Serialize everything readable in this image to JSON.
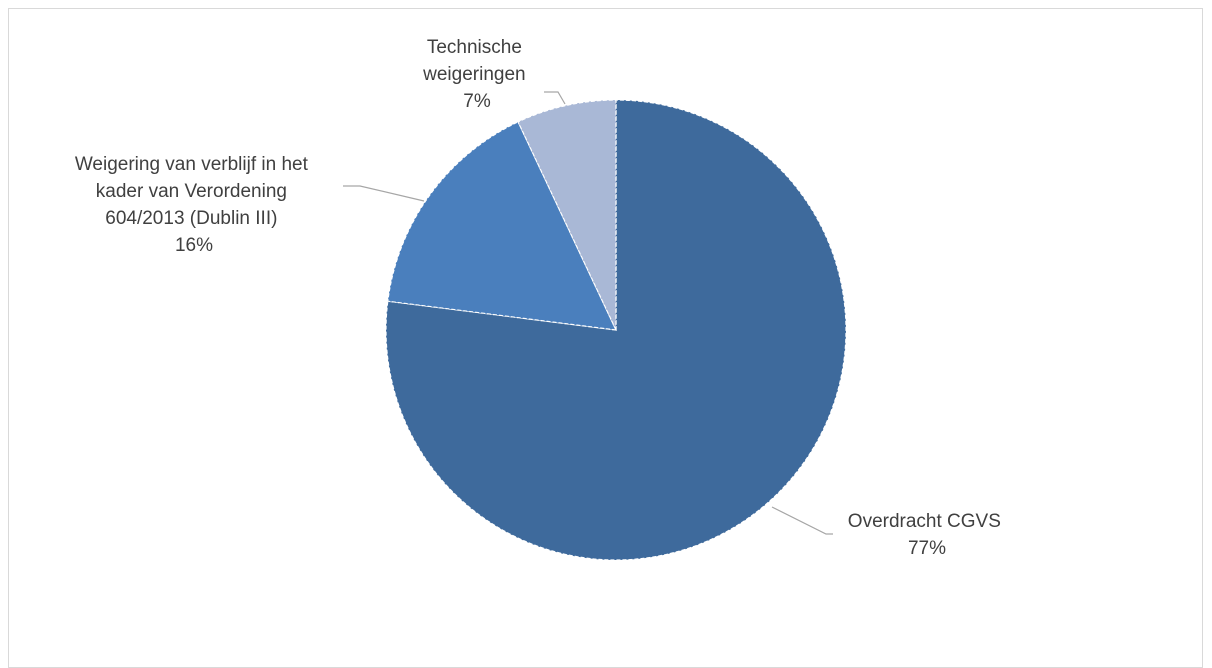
{
  "chart_data": {
    "type": "pie",
    "title": "",
    "slices": [
      {
        "label": "Overdracht CGVS",
        "value": 77,
        "display": "77%",
        "color": "#3e6a9c"
      },
      {
        "label": "Weigering van verblijf in het kader van Verordening 604/2013 (Dublin III)",
        "value": 16,
        "display": "16%",
        "color": "#4a7fbd"
      },
      {
        "label": "Technische weigeringen",
        "value": 7,
        "display": "7%",
        "color": "#a9b8d6"
      }
    ],
    "label_lines": {
      "overdracht": [
        "Overdracht CGVS"
      ],
      "weigering": [
        "Weigering van verblijf in het",
        "kader van Verordening",
        "604/2013 (Dublin III)"
      ],
      "technische": [
        "Technische",
        "weigeringen"
      ]
    },
    "legend": "none",
    "start_angle": "12 o'clock",
    "direction": "clockwise"
  }
}
